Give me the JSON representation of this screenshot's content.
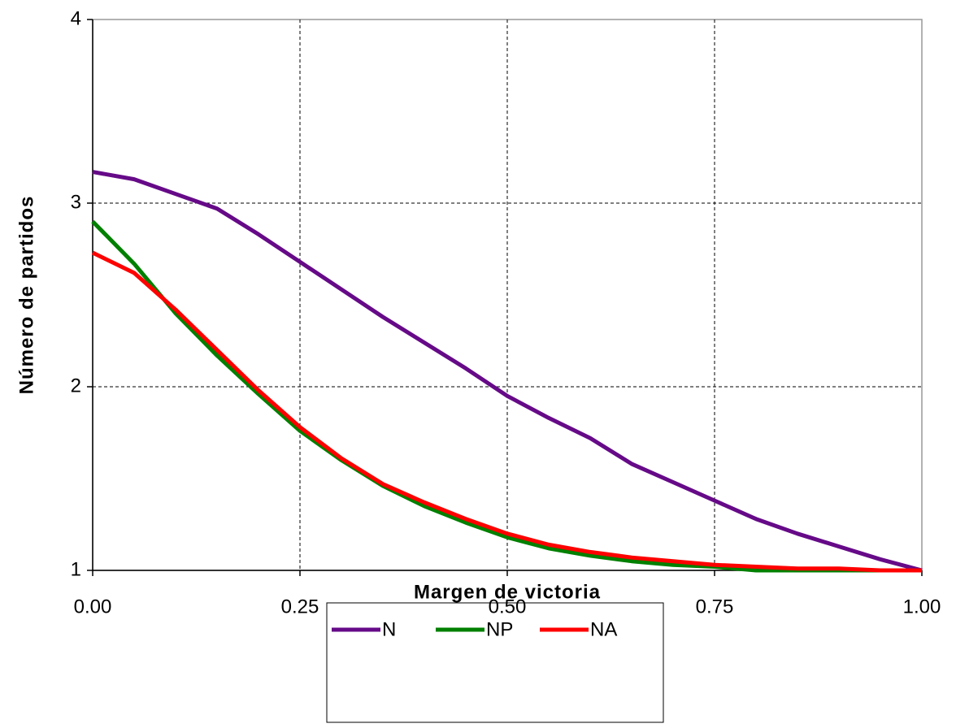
{
  "chart_data": {
    "type": "line",
    "x_label": "Margen de victoria",
    "y_label": "Número de partidos",
    "x": [
      0,
      0.05,
      0.1,
      0.15,
      0.2,
      0.25,
      0.3,
      0.35,
      0.4,
      0.45,
      0.5,
      0.55,
      0.6,
      0.65,
      0.7,
      0.75,
      0.8,
      0.85,
      0.9,
      0.95,
      1.0
    ],
    "series": [
      {
        "name": "N",
        "color": "#660a88",
        "values": [
          3.17,
          3.13,
          3.05,
          2.97,
          2.83,
          2.68,
          2.53,
          2.38,
          2.24,
          2.1,
          1.95,
          1.83,
          1.72,
          1.58,
          1.48,
          1.38,
          1.28,
          1.2,
          1.13,
          1.06,
          1.0
        ]
      },
      {
        "name": "NP",
        "color": "#008000",
        "values": [
          2.9,
          2.67,
          2.4,
          2.17,
          1.96,
          1.76,
          1.6,
          1.46,
          1.35,
          1.26,
          1.18,
          1.12,
          1.08,
          1.05,
          1.03,
          1.02,
          1.0,
          1.0,
          1.0,
          1.0,
          1.0
        ]
      },
      {
        "name": "NA",
        "color": "#ff0000",
        "values": [
          2.73,
          2.62,
          2.42,
          2.2,
          1.98,
          1.78,
          1.61,
          1.47,
          1.37,
          1.28,
          1.2,
          1.14,
          1.1,
          1.07,
          1.05,
          1.03,
          1.02,
          1.01,
          1.01,
          1.0,
          1.0
        ]
      }
    ],
    "xlim": [
      0,
      1
    ],
    "xticks": [
      {
        "value": 0,
        "label": "0.00"
      },
      {
        "value": 0.25,
        "label": "0.25"
      },
      {
        "value": 0.5,
        "label": "0.50"
      },
      {
        "value": 0.75,
        "label": "0.75"
      },
      {
        "value": 1,
        "label": "1.00"
      }
    ],
    "ylim": [
      1,
      4
    ],
    "yticks": [
      1,
      2,
      3,
      4
    ],
    "grid": true,
    "legend": "bottom"
  }
}
